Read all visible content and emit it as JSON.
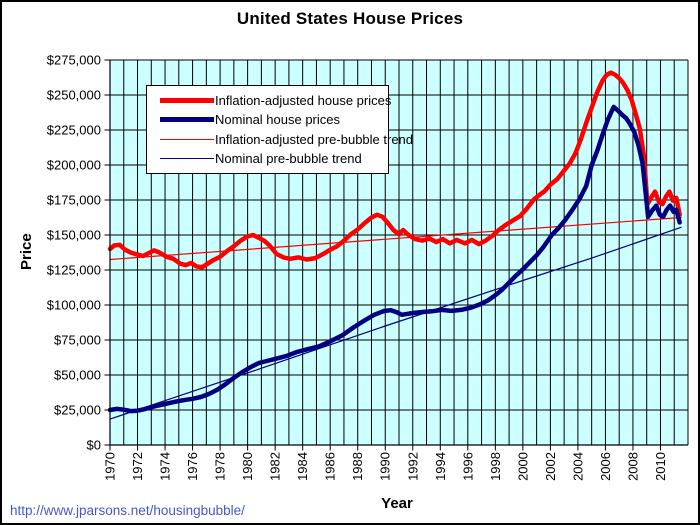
{
  "title": "United States House Prices",
  "footer": {
    "url": "http://www.jparsons.net/housingbubble/"
  },
  "chart_data": {
    "type": "line",
    "title": "United States House Prices",
    "xlabel": "Year",
    "ylabel": "Price",
    "unit": "USD thousands",
    "plot_bg": "#ccffff",
    "grid_color": "#000000",
    "legend_position": "top-left inside plot",
    "x_axis": {
      "min": 1970,
      "max": 2012,
      "gridline_interval": 1,
      "tick_interval": 2
    },
    "y_axis": {
      "min": 0,
      "max": 275,
      "gridline_interval": 25
    },
    "x_tick_labels": [
      "1970",
      "1972",
      "1974",
      "1976",
      "1978",
      "1980",
      "1982",
      "1984",
      "1986",
      "1988",
      "1990",
      "1992",
      "1994",
      "1996",
      "1998",
      "2000",
      "2002",
      "2004",
      "2006",
      "2008",
      "2010"
    ],
    "y_tick_labels": [
      "$0",
      "$25,000",
      "$50,000",
      "$75,000",
      "$100,000",
      "$125,000",
      "$150,000",
      "$175,000",
      "$200,000",
      "$225,000",
      "$250,000",
      "$275,000"
    ],
    "series": [
      {
        "name": "Inflation-adjusted house prices",
        "color": "#ff0000",
        "width": 4.5,
        "role": "data",
        "points": [
          [
            1970.0,
            140
          ],
          [
            1970.3,
            142.5
          ],
          [
            1970.7,
            143
          ],
          [
            1971.1,
            139.5
          ],
          [
            1971.5,
            137.5
          ],
          [
            1972.0,
            136
          ],
          [
            1972.4,
            135
          ],
          [
            1972.8,
            137
          ],
          [
            1973.2,
            139
          ],
          [
            1973.6,
            137.5
          ],
          [
            1974.1,
            134.5
          ],
          [
            1974.6,
            133
          ],
          [
            1975.1,
            129.5
          ],
          [
            1975.5,
            128.5
          ],
          [
            1975.9,
            130
          ],
          [
            1976.3,
            127.5
          ],
          [
            1976.7,
            127
          ],
          [
            1977.1,
            129.5
          ],
          [
            1977.5,
            132
          ],
          [
            1978.0,
            134.5
          ],
          [
            1978.5,
            138.5
          ],
          [
            1979.0,
            142
          ],
          [
            1979.5,
            146
          ],
          [
            1980.0,
            149
          ],
          [
            1980.4,
            150
          ],
          [
            1980.8,
            148
          ],
          [
            1981.2,
            146
          ],
          [
            1981.6,
            142.5
          ],
          [
            1982.1,
            136.5
          ],
          [
            1982.6,
            134
          ],
          [
            1983.1,
            133
          ],
          [
            1983.7,
            134
          ],
          [
            1984.3,
            132.5
          ],
          [
            1984.9,
            133.5
          ],
          [
            1985.5,
            136.5
          ],
          [
            1986.0,
            139.5
          ],
          [
            1986.5,
            142
          ],
          [
            1987.0,
            146
          ],
          [
            1987.5,
            150.5
          ],
          [
            1988.0,
            154
          ],
          [
            1988.5,
            158.5
          ],
          [
            1989.0,
            162.5
          ],
          [
            1989.4,
            164.5
          ],
          [
            1989.8,
            163
          ],
          [
            1990.2,
            158.5
          ],
          [
            1990.6,
            153.5
          ],
          [
            1991.0,
            150.5
          ],
          [
            1991.3,
            153.5
          ],
          [
            1991.7,
            150
          ],
          [
            1992.2,
            147
          ],
          [
            1992.7,
            146
          ],
          [
            1993.2,
            147.5
          ],
          [
            1993.7,
            145
          ],
          [
            1994.2,
            147
          ],
          [
            1994.7,
            144
          ],
          [
            1995.2,
            146.5
          ],
          [
            1995.8,
            144
          ],
          [
            1996.3,
            146.5
          ],
          [
            1996.8,
            143.5
          ],
          [
            1997.3,
            146
          ],
          [
            1997.8,
            149.5
          ],
          [
            1998.3,
            154
          ],
          [
            1998.8,
            157.5
          ],
          [
            1999.3,
            160.5
          ],
          [
            1999.8,
            163.5
          ],
          [
            2000.3,
            169
          ],
          [
            2000.8,
            175.5
          ],
          [
            2001.2,
            178.5
          ],
          [
            2001.6,
            181.5
          ],
          [
            2002.0,
            186
          ],
          [
            2002.5,
            190
          ],
          [
            2003.0,
            196
          ],
          [
            2003.4,
            201
          ],
          [
            2003.8,
            208
          ],
          [
            2004.2,
            218
          ],
          [
            2004.6,
            230
          ],
          [
            2005.0,
            241
          ],
          [
            2005.4,
            252
          ],
          [
            2005.8,
            260.5
          ],
          [
            2006.1,
            264.5
          ],
          [
            2006.4,
            266
          ],
          [
            2006.7,
            264.5
          ],
          [
            2007.0,
            262
          ],
          [
            2007.3,
            258.5
          ],
          [
            2007.6,
            253.5
          ],
          [
            2007.9,
            246.5
          ],
          [
            2008.2,
            236.5
          ],
          [
            2008.5,
            226
          ],
          [
            2008.8,
            206
          ],
          [
            2009.05,
            172
          ],
          [
            2009.35,
            177
          ],
          [
            2009.6,
            181
          ],
          [
            2009.9,
            173.5
          ],
          [
            2010.15,
            172
          ],
          [
            2010.4,
            177.5
          ],
          [
            2010.65,
            181
          ],
          [
            2010.9,
            174.5
          ],
          [
            2011.15,
            176.5
          ],
          [
            2011.4,
            164.5
          ]
        ]
      },
      {
        "name": "Nominal house prices",
        "color": "#000080",
        "width": 4.5,
        "role": "data",
        "points": [
          [
            1970.0,
            25
          ],
          [
            1970.5,
            25.8
          ],
          [
            1971.0,
            25.2
          ],
          [
            1971.5,
            24.2
          ],
          [
            1972.0,
            24.5
          ],
          [
            1972.5,
            25.6
          ],
          [
            1973.0,
            27
          ],
          [
            1973.5,
            28.2
          ],
          [
            1974.0,
            29.3
          ],
          [
            1974.5,
            30.4
          ],
          [
            1975.0,
            31.4
          ],
          [
            1975.5,
            32.3
          ],
          [
            1976.0,
            33
          ],
          [
            1976.6,
            34.3
          ],
          [
            1977.2,
            36.5
          ],
          [
            1977.8,
            39.5
          ],
          [
            1978.4,
            43.5
          ],
          [
            1979.0,
            48
          ],
          [
            1979.6,
            52
          ],
          [
            1980.2,
            55.5
          ],
          [
            1980.8,
            58.5
          ],
          [
            1981.4,
            60
          ],
          [
            1982.0,
            61.5
          ],
          [
            1982.8,
            63.5
          ],
          [
            1983.6,
            66.5
          ],
          [
            1984.4,
            68.5
          ],
          [
            1985.2,
            70.5
          ],
          [
            1986.0,
            74
          ],
          [
            1986.9,
            78.5
          ],
          [
            1987.7,
            84
          ],
          [
            1988.5,
            89
          ],
          [
            1989.2,
            93
          ],
          [
            1989.9,
            95.7
          ],
          [
            1990.4,
            96.3
          ],
          [
            1990.8,
            95
          ],
          [
            1991.2,
            93
          ],
          [
            1992.0,
            94.3
          ],
          [
            1992.7,
            95
          ],
          [
            1993.4,
            95.5
          ],
          [
            1994.1,
            96.5
          ],
          [
            1994.8,
            95.8
          ],
          [
            1995.5,
            96.5
          ],
          [
            1996.2,
            98
          ],
          [
            1996.9,
            100.5
          ],
          [
            1997.5,
            103.5
          ],
          [
            1998.0,
            107
          ],
          [
            1998.5,
            111
          ],
          [
            1999.0,
            116
          ],
          [
            1999.5,
            121
          ],
          [
            2000.0,
            125.5
          ],
          [
            2000.5,
            130.5
          ],
          [
            2001.0,
            135.5
          ],
          [
            2001.5,
            141.5
          ],
          [
            2002.1,
            150
          ],
          [
            2002.6,
            155
          ],
          [
            2003.1,
            161
          ],
          [
            2003.6,
            168
          ],
          [
            2004.1,
            175.5
          ],
          [
            2004.6,
            185
          ],
          [
            2005.0,
            200
          ],
          [
            2005.4,
            210
          ],
          [
            2005.8,
            222
          ],
          [
            2006.2,
            233
          ],
          [
            2006.6,
            241.5
          ],
          [
            2006.9,
            239
          ],
          [
            2007.2,
            236
          ],
          [
            2007.5,
            233.5
          ],
          [
            2007.8,
            229
          ],
          [
            2008.1,
            223.5
          ],
          [
            2008.4,
            214
          ],
          [
            2008.7,
            201
          ],
          [
            2009.1,
            163
          ],
          [
            2009.4,
            167.5
          ],
          [
            2009.7,
            171
          ],
          [
            2009.95,
            164.5
          ],
          [
            2010.2,
            163
          ],
          [
            2010.45,
            168
          ],
          [
            2010.7,
            171
          ],
          [
            2010.95,
            166.5
          ],
          [
            2011.15,
            168
          ],
          [
            2011.4,
            159
          ]
        ]
      },
      {
        "name": "Inflation-adjusted pre-bubble trend",
        "color": "#ff0000",
        "width": 1.2,
        "role": "trend",
        "points": [
          [
            1970,
            132.5
          ],
          [
            2011.5,
            162.5
          ]
        ]
      },
      {
        "name": "Nominal pre-bubble trend",
        "color": "#000080",
        "width": 1.2,
        "role": "trend",
        "points": [
          [
            1970,
            18.5
          ],
          [
            1980,
            51.5
          ],
          [
            1990,
            85
          ],
          [
            2000,
            117.5
          ],
          [
            2005,
            133.5
          ],
          [
            2011.5,
            155.5
          ]
        ]
      }
    ]
  }
}
